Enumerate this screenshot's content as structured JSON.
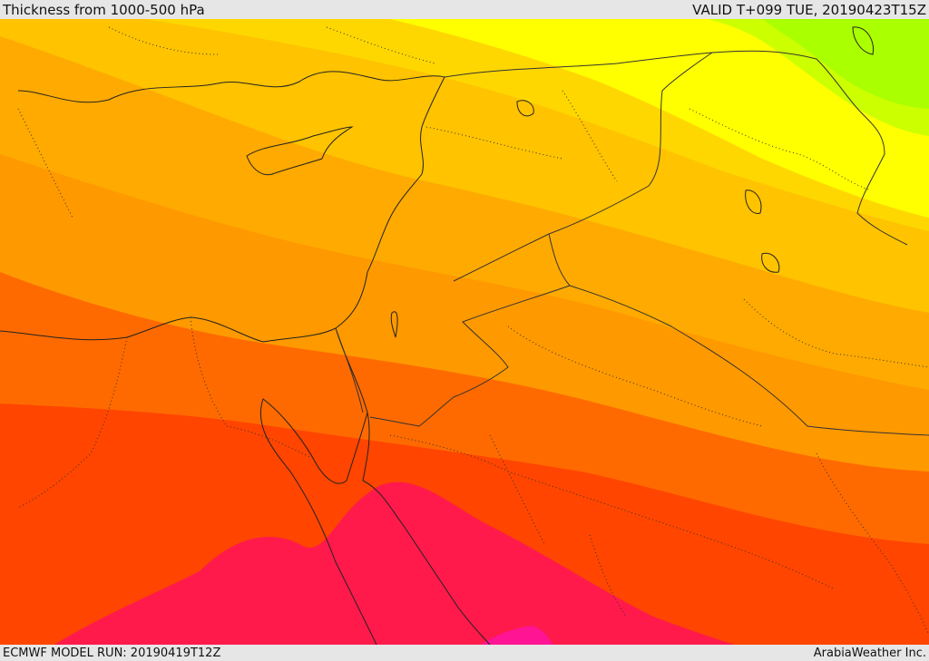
{
  "header": {
    "title": "Thickness from 1000-500 hPa",
    "valid": "VALID T+099 TUE, 20190423T15Z"
  },
  "footer": {
    "model_run": "ECMWF MODEL RUN: 20190419T12Z",
    "credit": "ArabiaWeather Inc."
  },
  "map": {
    "field": "1000-500 hPa thickness",
    "colors": {
      "green": "#aaff00",
      "yellow_green": "#ccff00",
      "yellow": "#ffff00",
      "gold": "#ffd700",
      "amber": "#ffc300",
      "orange_light": "#ffaa00",
      "orange": "#ff9900",
      "orange_deep": "#ff8000",
      "red_orange": "#ff6a00",
      "red": "#ff4500",
      "crimson": "#ff1a4b",
      "magenta": "#ff1493",
      "sea_line": "#222222",
      "border_line": "#333333"
    }
  }
}
